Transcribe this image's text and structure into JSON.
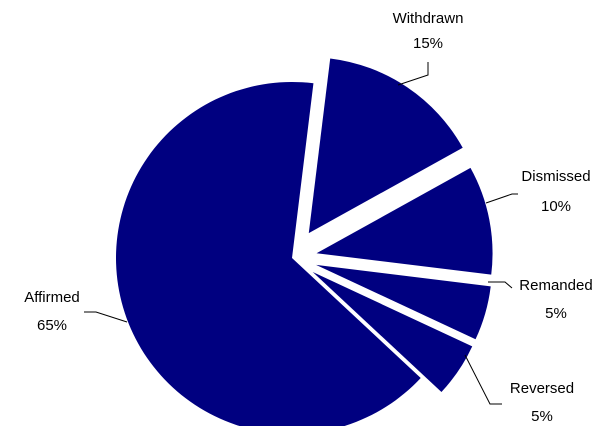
{
  "chart_data": {
    "type": "pie",
    "title": "",
    "exploded": true,
    "colors": {
      "slice": "#000080",
      "text": "#000000",
      "background": "#ffffff"
    },
    "slices": [
      {
        "id": "withdrawn",
        "label": "Withdrawn",
        "value": 15,
        "display": "15%"
      },
      {
        "id": "dismissed",
        "label": "Dismissed",
        "value": 10,
        "display": "10%"
      },
      {
        "id": "remanded",
        "label": "Remanded",
        "value": 5,
        "display": "5%"
      },
      {
        "id": "reversed",
        "label": "Reversed",
        "value": 5,
        "display": "5%"
      },
      {
        "id": "affirmed",
        "label": "Affirmed",
        "value": 65,
        "display": "65%"
      }
    ]
  }
}
